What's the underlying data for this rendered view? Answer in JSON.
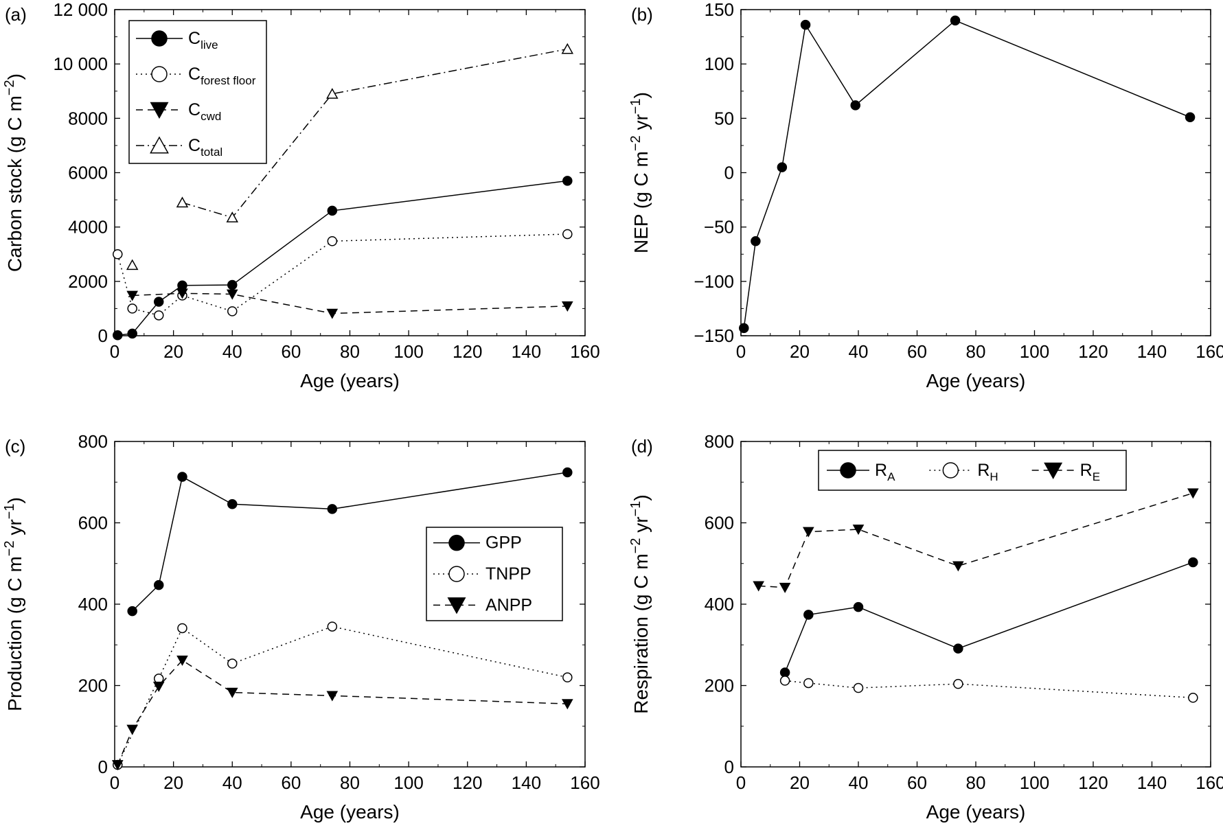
{
  "chart_data": [
    {
      "id": "a",
      "type": "line",
      "panel_label": "(a)",
      "xlabel": "Age (years)",
      "ylabel": "Carbon stock (g C m−2)",
      "ylabel_parts": [
        "Carbon stock (g C m",
        "−2",
        ")"
      ],
      "xlim": [
        0,
        160
      ],
      "ylim": [
        0,
        12000
      ],
      "xticks": [
        0,
        20,
        40,
        60,
        80,
        100,
        120,
        140,
        160
      ],
      "yticks": [
        0,
        2000,
        4000,
        6000,
        8000,
        10000,
        12000
      ],
      "xtick_labels": [
        "0",
        "20",
        "40",
        "60",
        "80",
        "100",
        "120",
        "140",
        "160"
      ],
      "ytick_labels": [
        "0",
        "2000",
        "4000",
        "6000",
        "8000",
        "10 000",
        "12 000"
      ],
      "legend_position": "top-left",
      "legend_layout": "vertical",
      "series": [
        {
          "name": "Clive",
          "label_main": "C",
          "label_sub": "live",
          "marker": "filled-circle",
          "line": "solid",
          "segments": [
            [
              [
                1,
                20
              ],
              [
                6,
                80
              ],
              [
                15,
                1250
              ],
              [
                23,
                1850
              ],
              [
                40,
                1870
              ],
              [
                74,
                4600
              ],
              [
                154,
                5700
              ]
            ]
          ]
        },
        {
          "name": "Cforest floor",
          "label_main": "C",
          "label_sub": "forest floor",
          "marker": "open-circle",
          "line": "dotted",
          "segments": [
            [
              [
                1,
                3000
              ],
              [
                6,
                1000
              ],
              [
                15,
                750
              ],
              [
                23,
                1480
              ],
              [
                40,
                900
              ],
              [
                74,
                3480
              ],
              [
                154,
                3740
              ]
            ]
          ]
        },
        {
          "name": "Ccwd",
          "label_main": "C",
          "label_sub": "cwd",
          "marker": "filled-triangle-down",
          "line": "dashed",
          "segments": [
            [
              [
                6,
                1480
              ],
              [
                23,
                1560
              ],
              [
                40,
                1530
              ],
              [
                74,
                820
              ],
              [
                154,
                1090
              ]
            ]
          ]
        },
        {
          "name": "Ctotal",
          "label_main": "C",
          "label_sub": "total",
          "marker": "open-triangle-up",
          "line": "dashdot",
          "segments": [
            [
              [
                6,
                2600
              ]
            ],
            [
              [
                23,
                4900
              ],
              [
                40,
                4350
              ],
              [
                74,
                8900
              ],
              [
                154,
                10550
              ]
            ]
          ]
        }
      ]
    },
    {
      "id": "b",
      "type": "line",
      "panel_label": "(b)",
      "xlabel": "Age (years)",
      "ylabel": "NEP (g C m−2 yr−1)",
      "ylabel_parts": [
        "NEP (g C m",
        "−2",
        " yr",
        "−1",
        ")"
      ],
      "xlim": [
        0,
        160
      ],
      "ylim": [
        -150,
        150
      ],
      "xticks": [
        0,
        20,
        40,
        60,
        80,
        100,
        120,
        140,
        160
      ],
      "yticks": [
        -150,
        -100,
        -50,
        0,
        50,
        100,
        150
      ],
      "xtick_labels": [
        "0",
        "20",
        "40",
        "60",
        "80",
        "100",
        "120",
        "140",
        "160"
      ],
      "ytick_labels": [
        "−150",
        "−100",
        "−50",
        "0",
        "50",
        "100",
        "150"
      ],
      "series": [
        {
          "marker": "filled-circle",
          "line": "solid",
          "segments": [
            [
              [
                1,
                -143
              ],
              [
                5,
                -63
              ],
              [
                14,
                5
              ],
              [
                22,
                136
              ],
              [
                39,
                62
              ],
              [
                73,
                140
              ],
              [
                153,
                51
              ]
            ]
          ]
        }
      ]
    },
    {
      "id": "c",
      "type": "line",
      "panel_label": "(c)",
      "xlabel": "Age (years)",
      "ylabel": "Production (g C m−2 yr−1)",
      "ylabel_parts": [
        "Production (g C m",
        "−2",
        " yr",
        "−1",
        ")"
      ],
      "xlim": [
        0,
        160
      ],
      "ylim": [
        0,
        800
      ],
      "xticks": [
        0,
        20,
        40,
        60,
        80,
        100,
        120,
        140,
        160
      ],
      "yticks": [
        0,
        200,
        400,
        600,
        800
      ],
      "xtick_labels": [
        "0",
        "20",
        "40",
        "60",
        "80",
        "100",
        "120",
        "140",
        "160"
      ],
      "ytick_labels": [
        "0",
        "200",
        "400",
        "600",
        "800"
      ],
      "legend_position": "center-right",
      "legend_layout": "vertical",
      "series": [
        {
          "name": "GPP",
          "marker": "filled-circle",
          "line": "solid",
          "segments": [
            [
              [
                6,
                383
              ],
              [
                15,
                447
              ],
              [
                23,
                713
              ],
              [
                40,
                646
              ],
              [
                74,
                634
              ],
              [
                154,
                724
              ]
            ]
          ]
        },
        {
          "name": "TNPP",
          "marker": "open-circle",
          "line": "dotted",
          "segments": [
            [
              [
                1,
                5
              ],
              [
                15,
                217
              ],
              [
                23,
                341
              ],
              [
                40,
                254
              ],
              [
                74,
                345
              ],
              [
                154,
                220
              ]
            ]
          ]
        },
        {
          "name": "ANPP",
          "marker": "filled-triangle-down",
          "line": "dashed",
          "segments": [
            [
              [
                1,
                5
              ],
              [
                6,
                92
              ],
              [
                15,
                198
              ],
              [
                23,
                262
              ],
              [
                40,
                183
              ],
              [
                74,
                175
              ],
              [
                154,
                155
              ]
            ]
          ]
        }
      ]
    },
    {
      "id": "d",
      "type": "line",
      "panel_label": "(d)",
      "xlabel": "Age (years)",
      "ylabel": "Respiration (g C m−2 yr−1)",
      "ylabel_parts": [
        "Respiration (g C m",
        "−2",
        " yr",
        "−1",
        ")"
      ],
      "xlim": [
        0,
        160
      ],
      "ylim": [
        0,
        800
      ],
      "xticks": [
        0,
        20,
        40,
        60,
        80,
        100,
        120,
        140,
        160
      ],
      "yticks": [
        0,
        200,
        400,
        600,
        800
      ],
      "xtick_labels": [
        "0",
        "20",
        "40",
        "60",
        "80",
        "100",
        "120",
        "140",
        "160"
      ],
      "ytick_labels": [
        "0",
        "200",
        "400",
        "600",
        "800"
      ],
      "legend_position": "top-center",
      "legend_layout": "horizontal",
      "series": [
        {
          "name": "RA",
          "label_main": "R",
          "label_sub": "A",
          "marker": "filled-circle",
          "line": "solid",
          "segments": [
            [
              [
                15,
                232
              ],
              [
                23,
                374
              ],
              [
                40,
                393
              ],
              [
                74,
                291
              ],
              [
                154,
                503
              ]
            ]
          ]
        },
        {
          "name": "RH",
          "label_main": "R",
          "label_sub": "H",
          "marker": "open-circle",
          "line": "dotted",
          "segments": [
            [
              [
                15,
                212
              ],
              [
                23,
                206
              ],
              [
                40,
                194
              ],
              [
                74,
                204
              ],
              [
                154,
                170
              ]
            ]
          ]
        },
        {
          "name": "RE",
          "label_main": "R",
          "label_sub": "E",
          "marker": "filled-triangle-down",
          "line": "dashed",
          "segments": [
            [
              [
                6,
                445
              ],
              [
                15,
                441
              ],
              [
                23,
                578
              ],
              [
                40,
                584
              ],
              [
                74,
                494
              ],
              [
                154,
                673
              ]
            ]
          ]
        }
      ]
    }
  ]
}
